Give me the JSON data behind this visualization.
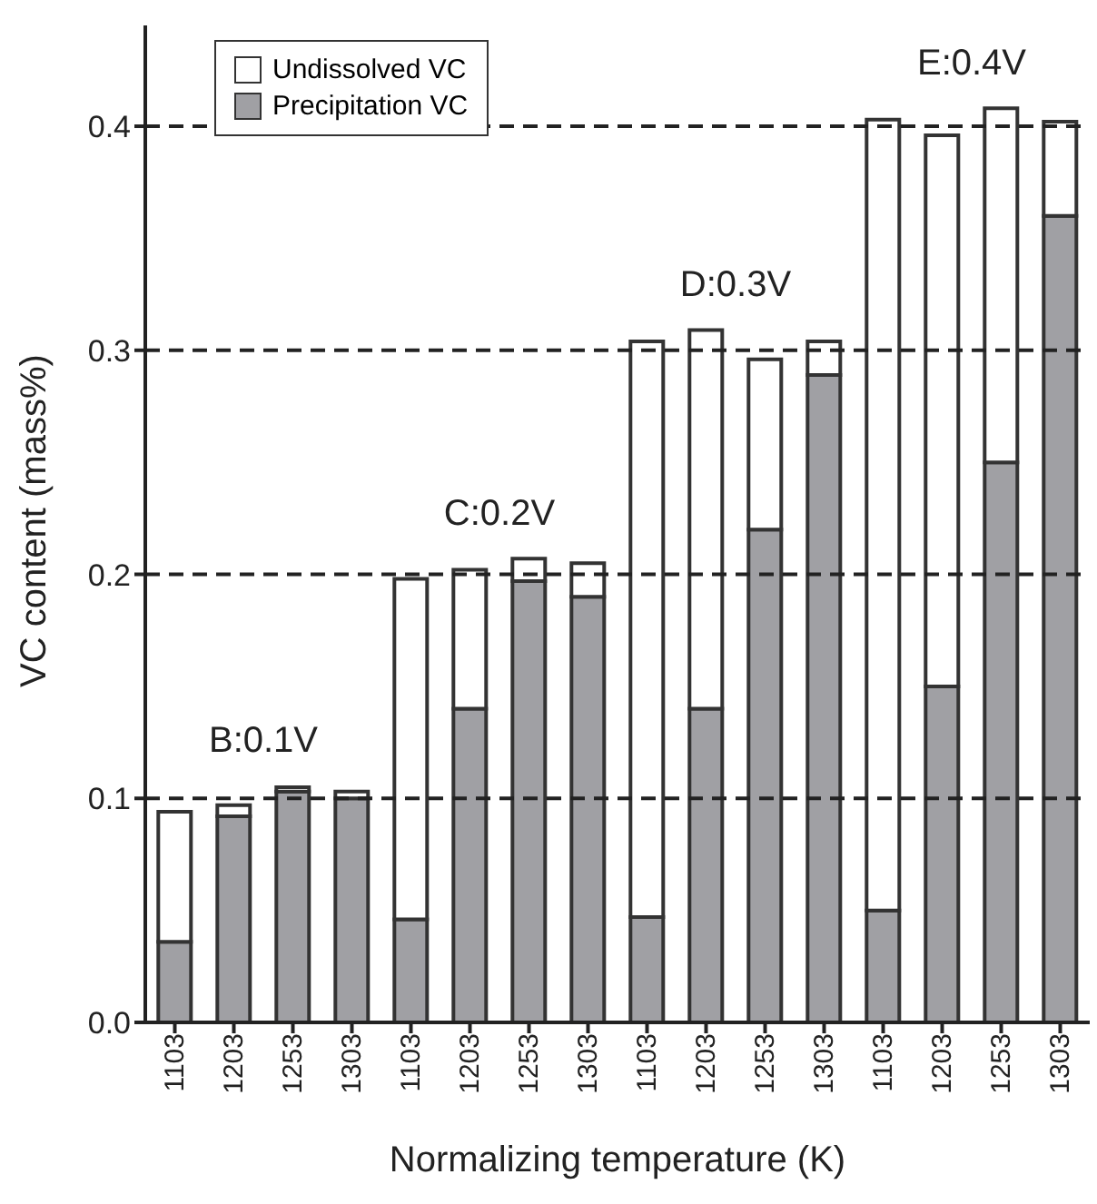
{
  "chart_data": {
    "type": "bar",
    "stacked": true,
    "xlabel": "Normalizing temperature (K)",
    "ylabel": "VC content (mass%)",
    "categories": [
      "1103",
      "1203",
      "1253",
      "1303",
      "1103",
      "1203",
      "1253",
      "1303",
      "1103",
      "1203",
      "1253",
      "1303",
      "1103",
      "1203",
      "1253",
      "1303"
    ],
    "series": [
      {
        "name": "Precipitation VC",
        "color": "#a0a0a4",
        "values": [
          0.036,
          0.092,
          0.103,
          0.1,
          0.046,
          0.14,
          0.197,
          0.19,
          0.047,
          0.14,
          0.22,
          0.289,
          0.05,
          0.15,
          0.25,
          0.36
        ]
      },
      {
        "name": "Undissolved VC",
        "color": "#ffffff",
        "values": [
          0.058,
          0.005,
          0.002,
          0.003,
          0.152,
          0.062,
          0.01,
          0.015,
          0.257,
          0.169,
          0.076,
          0.015,
          0.353,
          0.246,
          0.158,
          0.042
        ]
      }
    ],
    "ylim": [
      0,
      0.445
    ],
    "yticks": [
      {
        "value": 0,
        "label": "0.0"
      },
      0.1,
      0.2,
      0.3,
      0.4
    ],
    "ref_lines": [
      {
        "axis": "y",
        "value": 0.1,
        "line_style": "dashed"
      },
      {
        "axis": "y",
        "value": 0.2,
        "line_style": "dashed"
      },
      {
        "axis": "y",
        "value": 0.3,
        "line_style": "dashed"
      },
      {
        "axis": "y",
        "value": 0.4,
        "line_style": "dashed"
      }
    ],
    "annotations": [
      "B:0.1V",
      "C:0.2V",
      "D:0.3V",
      "E:0.4V"
    ],
    "legend": "top left",
    "grid": false
  }
}
